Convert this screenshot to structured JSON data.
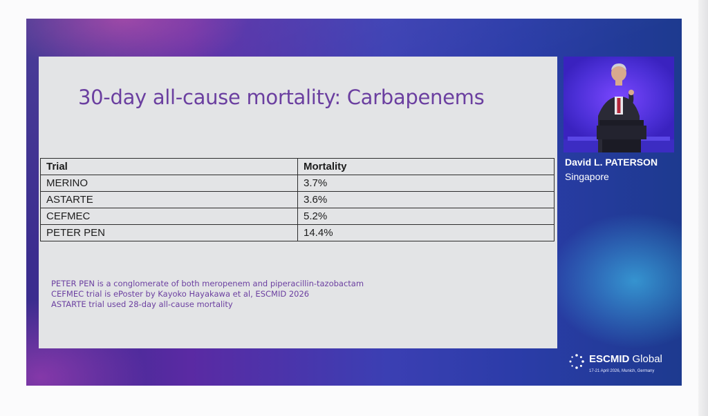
{
  "slide": {
    "title": "30-day all-cause mortality: Carbapenems",
    "table": {
      "headers": [
        "Trial",
        "Mortality"
      ],
      "rows": [
        [
          "MERINO",
          "3.7%"
        ],
        [
          "ASTARTE",
          "3.6%"
        ],
        [
          "CEFMEC",
          "5.2%"
        ],
        [
          "PETER PEN",
          "14.4%"
        ]
      ]
    },
    "notes": [
      "PETER PEN is a conglomerate of both meropenem and piperacillin-tazobactam",
      "CEFMEC trial is ePoster by Kayoko Hayakawa et al, ESCMID 2026",
      "ASTARTE trial used 28-day all-cause mortality"
    ]
  },
  "speaker": {
    "name": "David L. PATERSON",
    "location": "Singapore"
  },
  "brand": {
    "name_bold": "ESCMID",
    "name_rest": " Global",
    "date_line": "17-21 April 2026, Munich, Germany"
  },
  "colors": {
    "title_purple": "#6b3fa0",
    "slide_bg": "#e3e4e6",
    "frame_purple": "#4a2ea0"
  }
}
